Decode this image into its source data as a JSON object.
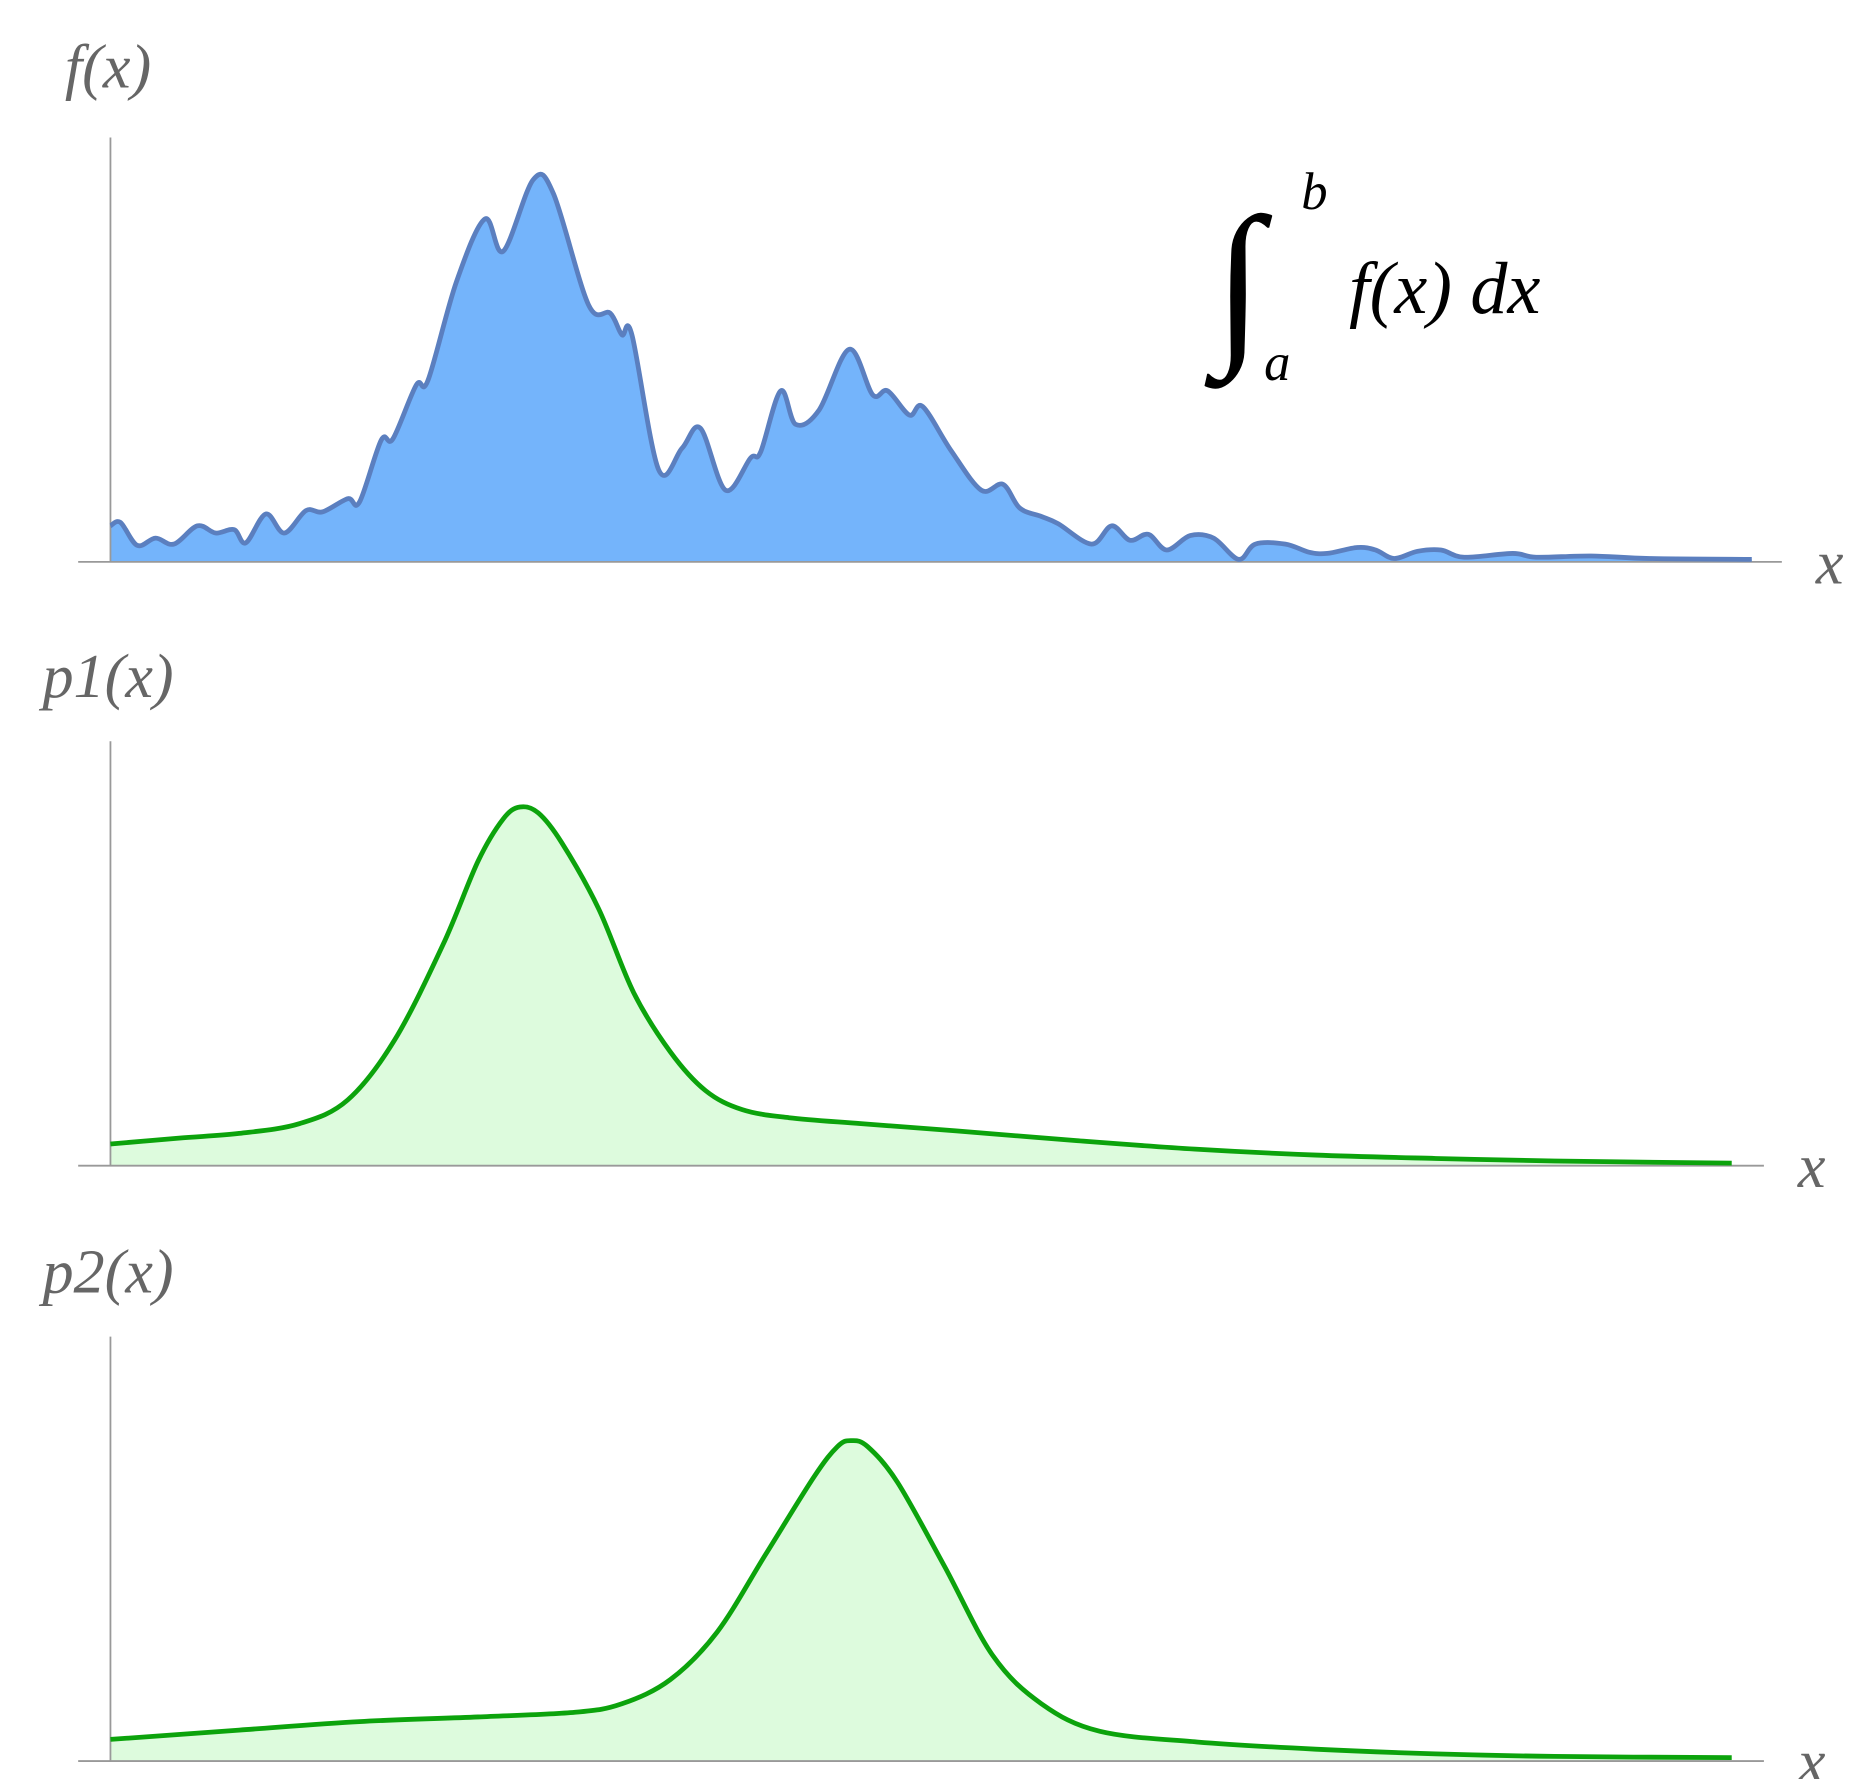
{
  "chart_data": [
    {
      "type": "area",
      "y_label": "f(x)",
      "x_label": "x",
      "integral": {
        "symbol": "∫",
        "upper": "b",
        "lower": "a",
        "integrand": "f(x) dx"
      },
      "color": "#5b7fbf",
      "fill_color": "#74b4fb",
      "xlim": [
        0,
        100
      ],
      "ylim": [
        0,
        100
      ],
      "x": [
        0,
        0.6,
        1.6,
        2.7,
        3.8,
        5.2,
        6.3,
        7.4,
        8.1,
        9.3,
        10.4,
        11.7,
        12.7,
        14.2,
        14.9,
        16.2,
        16.9,
        18.3,
        19.0,
        20.7,
        22.4,
        23.5,
        25.3,
        26.5,
        28.6,
        29.9,
        30.6,
        31.2,
        32.8,
        34.2,
        35.3,
        36.8,
        38.3,
        38.9,
        40.1,
        41.0,
        42.4,
        44.2,
        45.6,
        46.5,
        47.8,
        48.6,
        50.3,
        52.1,
        53.4,
        54.4,
        55.7,
        56.7,
        58.7,
        59.9,
        61.0,
        62.1,
        63.2,
        64.6,
        66.0,
        67.5,
        68.5,
        70.3,
        71.7,
        72.8,
        74.6,
        75.7,
        76.8,
        78.2,
        79.6,
        81.0,
        83.9,
        85.3,
        88.6,
        92.1,
        98.2
      ],
      "values": [
        8.5,
        9.3,
        3.9,
        5.6,
        4.2,
        8.5,
        6.8,
        7.6,
        4.5,
        11.3,
        6.8,
        12.1,
        11.8,
        14.9,
        14.1,
        28.7,
        29.0,
        41.7,
        42.8,
        66.0,
        80.8,
        73.2,
        90.1,
        86.8,
        60.6,
        58.6,
        53.5,
        53.5,
        21.7,
        26.8,
        31.5,
        16.9,
        24.5,
        25.9,
        40.3,
        32.4,
        35.8,
        50.1,
        39.4,
        40.3,
        34.6,
        36.6,
        26.2,
        16.9,
        18.3,
        12.7,
        10.7,
        9.0,
        4.2,
        8.5,
        5.1,
        6.5,
        2.8,
        6.2,
        5.6,
        0.6,
        4.2,
        4.2,
        2.3,
        2.0,
        3.4,
        2.8,
        0.8,
        2.5,
        2.8,
        1.1,
        2.0,
        1.1,
        1.4,
        0.8,
        0.6
      ]
    },
    {
      "type": "area",
      "y_label": "p1(x)",
      "x_label": "x",
      "color": "#0ca30c",
      "fill_color": "#ddfbdd",
      "xlim": [
        0,
        100
      ],
      "ylim": [
        0,
        100
      ],
      "x": [
        0,
        4.1,
        7.7,
        11.3,
        14.2,
        17.0,
        19.9,
        22.0,
        23.5,
        24.5,
        25.6,
        27.0,
        29.2,
        31.3,
        33.5,
        35.6,
        37.8,
        40.6,
        44.9,
        50.6,
        57.8,
        64.9,
        72.1,
        79.3,
        86.4,
        97.0
      ],
      "values": [
        5.1,
        6.5,
        7.6,
        9.9,
        15.5,
        29.6,
        52.1,
        71.8,
        81.7,
        84.5,
        83.1,
        76.1,
        60.6,
        40.8,
        26.8,
        17.7,
        13.2,
        11.3,
        9.9,
        8.2,
        5.9,
        3.9,
        2.5,
        1.7,
        1.1,
        0.6
      ]
    },
    {
      "type": "area",
      "y_label": "p2(x)",
      "x_label": "x",
      "color": "#0ca30c",
      "fill_color": "#ddfbdd",
      "xlim": [
        0,
        100
      ],
      "ylim": [
        0,
        100
      ],
      "x": [
        0,
        7.7,
        14.9,
        22.0,
        27.8,
        30.6,
        33.5,
        36.3,
        39.2,
        42.1,
        43.5,
        44.3,
        45.3,
        47.1,
        49.9,
        52.8,
        55.7,
        59.2,
        65.0,
        72.1,
        79.3,
        86.4,
        97.0
      ],
      "values": [
        5.1,
        7.3,
        9.3,
        10.4,
        11.5,
        13.5,
        19.2,
        30.4,
        48.7,
        67.0,
        74.1,
        75.5,
        74.1,
        65.6,
        45.9,
        24.8,
        13.5,
        7.0,
        4.5,
        2.8,
        1.7,
        1.1,
        0.8
      ]
    }
  ]
}
